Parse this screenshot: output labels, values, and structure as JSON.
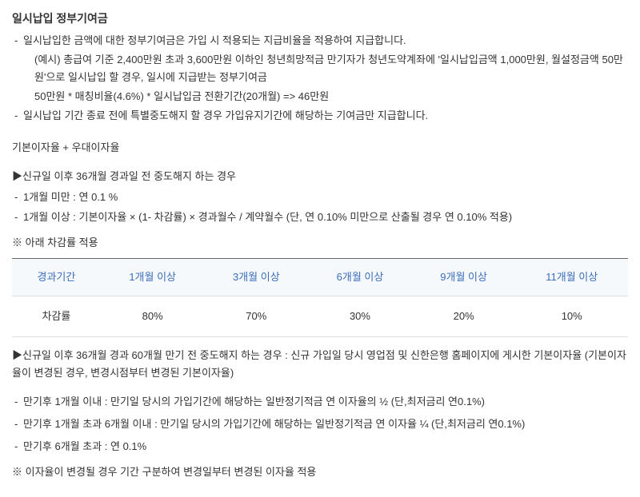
{
  "title": "일시납입 정부기여금",
  "bullets1": [
    "일시납입한 금액에 대한 정부기여금은 가입 시 적용되는 지급비율을 적용하여 지급합니다."
  ],
  "example": {
    "line1": "(예시) 총급여 기준 2,400만원 초과 3,600만원 이하인 청년희망적금 만기자가 청년도약계좌에 '일시납입금액 1,000만원, 월설정금액 50만원'으로 일시납입 할 경우, 일시에 지급받는 정부기여금",
    "line2": "50만원 * 매칭비율(4.6%) * 일시납입금 전환기간(20개월) => 46만원"
  },
  "bullets2": [
    "일시납입 기간 종료 전에 특별중도해지 할 경우 가입유지기간에 해당하는 기여금만 지급합니다."
  ],
  "rateHeader": "기본이자율 + 우대이자율",
  "subHeading1": "▶신규일 이후 36개월 경과일 전 중도해지 하는 경우",
  "subBullets1": [
    "1개월 미만 : 연 0.1 %",
    "1개월 이상 : 기본이자율 × (1- 차감률) × 경과월수 / 계약월수 (단, 연 0.10% 미만으로 산출될 경우 연 0.10% 적용)"
  ],
  "tableNote": "※ 아래 차감률 적용",
  "table": {
    "headers": [
      "경과기간",
      "1개월 이상",
      "3개월 이상",
      "6개월 이상",
      "9개월 이상",
      "11개월 이상"
    ],
    "rowLabel": "차감률",
    "values": [
      "80%",
      "70%",
      "30%",
      "20%",
      "10%"
    ]
  },
  "subHeading2": "▶신규일 이후 36개월 경과 60개월 만기 전 중도해지 하는 경우 : 신규 가입일 당시 영업점 및 신한은행 홈페이지에 게시한 기본이자율 (기본이자율이 변경된 경우, 변경시점부터 변경된 기본이자율)",
  "maturityBullets": [
    "만기후 1개월 이내 : 만기일 당시의 가입기간에 해당하는 일반정기적금 연 이자율의 ½ (단,최저금리 연0.1%)",
    "만기후 1개월 초과 6개월 이내 : 만기일 당시의 가입기간에 해당하는 일반정기적금 연 이자율 ¼ (단,최저금리 연0.1%)",
    "만기후 6개월 초과 : 연 0.1%"
  ],
  "finalNote": "※ 이자율이 변경될 경우 기간 구분하여 변경일부터 변경된 이자율 적용"
}
